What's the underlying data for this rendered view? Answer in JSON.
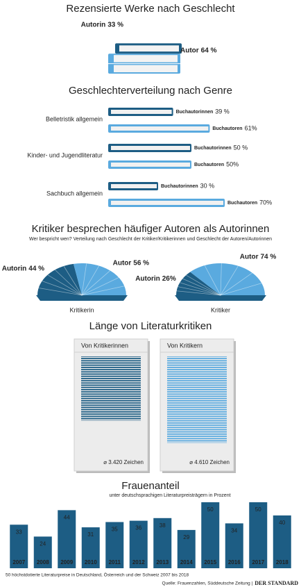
{
  "chart_data": [
    {
      "type": "book-stack",
      "title": "Rezensierte Werke nach Geschlecht",
      "categories": [
        "Autorin",
        "Autor"
      ],
      "values": [
        33,
        64
      ],
      "value_labels": [
        "33 %",
        "64 %"
      ],
      "colors": [
        "#1d5d84",
        "#5aaadf"
      ]
    },
    {
      "type": "book-bar",
      "title": "Geschlechterverteilung nach Genre",
      "categories": [
        "Belletristik allgemein",
        "Kinder- und Jugendliteratur",
        "Sachbuch allgemein"
      ],
      "series": [
        {
          "name": "Buchautorinnen",
          "color": "#1d5d84",
          "values": [
            39,
            50,
            30
          ],
          "value_labels": [
            "39 %",
            "50 %",
            "30 %"
          ]
        },
        {
          "name": "Buchautoren",
          "color": "#5aaadf",
          "values": [
            61,
            50,
            70
          ],
          "value_labels": [
            "61%",
            "50%",
            "70%"
          ]
        }
      ]
    },
    {
      "type": "open-book",
      "title": "Kritiker besprechen häufiger Autoren als Autorinnen",
      "subtitle": "Wer bespricht wen? Verteilung nach Geschlecht der Kritiker/Kritikerinnen und Geschlecht der Autoren/Autorinnen",
      "categories": [
        "Kritikerin",
        "Kritiker"
      ],
      "series": [
        {
          "name": "Autorin",
          "color": "#1d5d84",
          "values": [
            44,
            26
          ],
          "value_labels": [
            "44 %",
            "26%"
          ]
        },
        {
          "name": "Autor",
          "color": "#5aaadf",
          "values": [
            56,
            74
          ],
          "value_labels": [
            "56 %",
            "74 %"
          ]
        }
      ]
    },
    {
      "type": "text-block",
      "title": "Länge von Literaturkritiken",
      "categories": [
        "Von Kritikerinnen",
        "Von Kritikern"
      ],
      "values": [
        3420,
        4610
      ],
      "value_labels": [
        "⌀ 3.420 Zeichen",
        "⌀ 4.610 Zeichen"
      ],
      "colors": [
        "#1d5d84",
        "#5aaadf"
      ]
    },
    {
      "type": "bar",
      "title": "Frauenanteil",
      "subtitle": "unter deutschsprachigen Literaturpreisträgern in Prozent",
      "categories": [
        "2007",
        "2008",
        "2009",
        "2010",
        "2011",
        "2012",
        "2013",
        "2014",
        "2015",
        "2016",
        "2017",
        "2018"
      ],
      "values": [
        33,
        24,
        44,
        31,
        35,
        36,
        38,
        29,
        50,
        34,
        50,
        40
      ],
      "color": "#1d5d84",
      "note": "50 höchstdotierte Literaturpreise in Deutschland, Österreich und der Schweiz 2007 bis 2018",
      "source": "Quelle: Frauenzahlen, Süddeutsche Zeitung |",
      "brand": "DER STANDARD"
    }
  ]
}
